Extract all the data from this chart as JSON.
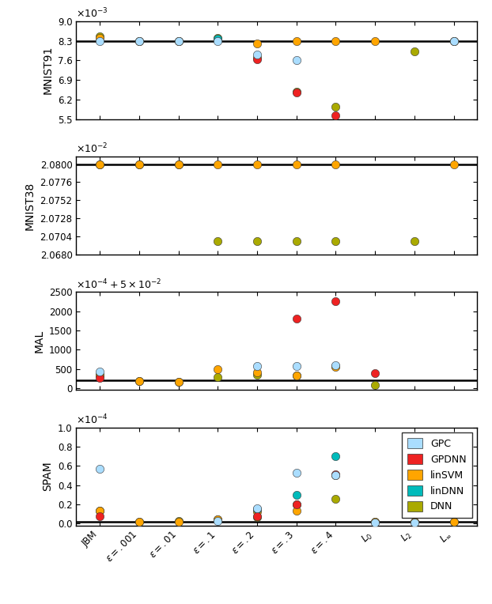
{
  "x_labels": [
    "JBM",
    "$\\epsilon=.001$",
    "$\\epsilon=.01$",
    "$\\epsilon=.1$",
    "$\\epsilon=.2$",
    "$\\epsilon=.3$",
    "$\\epsilon=.4$",
    "$L_0$",
    "$L_2$",
    "$L_\\infty$"
  ],
  "color_GPC": "#AADDFF",
  "color_GPDNN": "#EE2222",
  "color_linSVM": "#FFA500",
  "color_linDNN": "#00BBBB",
  "color_DNN": "#AAAA00",
  "mnist91": {
    "ylim": [
      0.0055,
      0.009
    ],
    "yticks": [
      5.5,
      6.2,
      6.9,
      7.6,
      8.3,
      9.0
    ],
    "hline": 0.0083,
    "GPC": [
      0.0083,
      0.0083,
      0.0083,
      0.0083,
      0.0078,
      0.00762,
      null,
      null,
      null,
      0.0083
    ],
    "GPDNN": [
      null,
      null,
      null,
      null,
      0.00765,
      0.00645,
      0.00565,
      null,
      null,
      null
    ],
    "linSVM": [
      0.0084,
      0.0083,
      0.0083,
      0.00835,
      0.0082,
      0.0083,
      0.0083,
      0.0083,
      null,
      0.0083
    ],
    "linDNN": [
      null,
      null,
      null,
      0.00836,
      null,
      null,
      null,
      null,
      null,
      null
    ],
    "DNN": [
      0.00847,
      0.0083,
      0.0083,
      0.0084,
      0.0077,
      0.00648,
      0.00595,
      null,
      0.00793,
      0.0083
    ]
  },
  "mnist38": {
    "ylim": [
      0.02068,
      0.02081
    ],
    "yticks": [
      2.068,
      2.0704,
      2.0728,
      2.0752,
      2.0776,
      2.08
    ],
    "hline": 0.0208,
    "GPC": [
      null,
      null,
      null,
      null,
      null,
      null,
      null,
      null,
      null,
      null
    ],
    "GPDNN": [
      null,
      null,
      null,
      null,
      null,
      null,
      null,
      null,
      null,
      null
    ],
    "linSVM": [
      0.0208,
      0.0208,
      0.0208,
      0.0208,
      0.0208,
      0.0208,
      0.0208,
      null,
      null,
      0.0208
    ],
    "linDNN": [
      null,
      null,
      null,
      null,
      null,
      null,
      null,
      null,
      null,
      null
    ],
    "DNN": [
      0.0208,
      0.0208,
      0.0208,
      0.020698,
      0.020698,
      0.020698,
      0.020698,
      null,
      0.020698,
      null
    ]
  },
  "mal": {
    "ylim": [
      -50,
      2500
    ],
    "yticks": [
      0,
      500,
      1000,
      1500,
      2000,
      2500
    ],
    "hline": 200,
    "GPC": [
      430,
      null,
      null,
      null,
      570,
      580,
      600,
      null,
      null,
      null
    ],
    "GPDNN": [
      270,
      null,
      null,
      null,
      null,
      1800,
      2260,
      400,
      null,
      null
    ],
    "linSVM": [
      330,
      175,
      155,
      490,
      420,
      330,
      560,
      null,
      null,
      null
    ],
    "linDNN": [
      null,
      null,
      null,
      null,
      null,
      null,
      null,
      null,
      null,
      null
    ],
    "DNN": [
      355,
      175,
      160,
      280,
      340,
      330,
      570,
      75,
      null,
      null
    ]
  },
  "spam": {
    "ylim": [
      -0.02,
      1.0
    ],
    "yticks": [
      0.0,
      0.2,
      0.4,
      0.6,
      0.8,
      1.0
    ],
    "hline": 0.02,
    "GPC": [
      0.57,
      null,
      null,
      0.03,
      0.16,
      0.53,
      0.5,
      0.01,
      0.01,
      null
    ],
    "GPDNN": [
      0.08,
      null,
      null,
      null,
      0.075,
      0.2,
      0.51,
      null,
      null,
      null
    ],
    "linSVM": [
      0.13,
      0.02,
      0.02,
      0.04,
      0.125,
      0.13,
      0.505,
      0.015,
      0.015,
      0.02
    ],
    "linDNN": [
      null,
      null,
      null,
      null,
      0.148,
      0.3,
      0.7,
      null,
      null,
      null
    ],
    "DNN": [
      0.135,
      0.02,
      0.025,
      0.04,
      0.065,
      0.2,
      0.26,
      0.015,
      0.015,
      0.02
    ]
  }
}
